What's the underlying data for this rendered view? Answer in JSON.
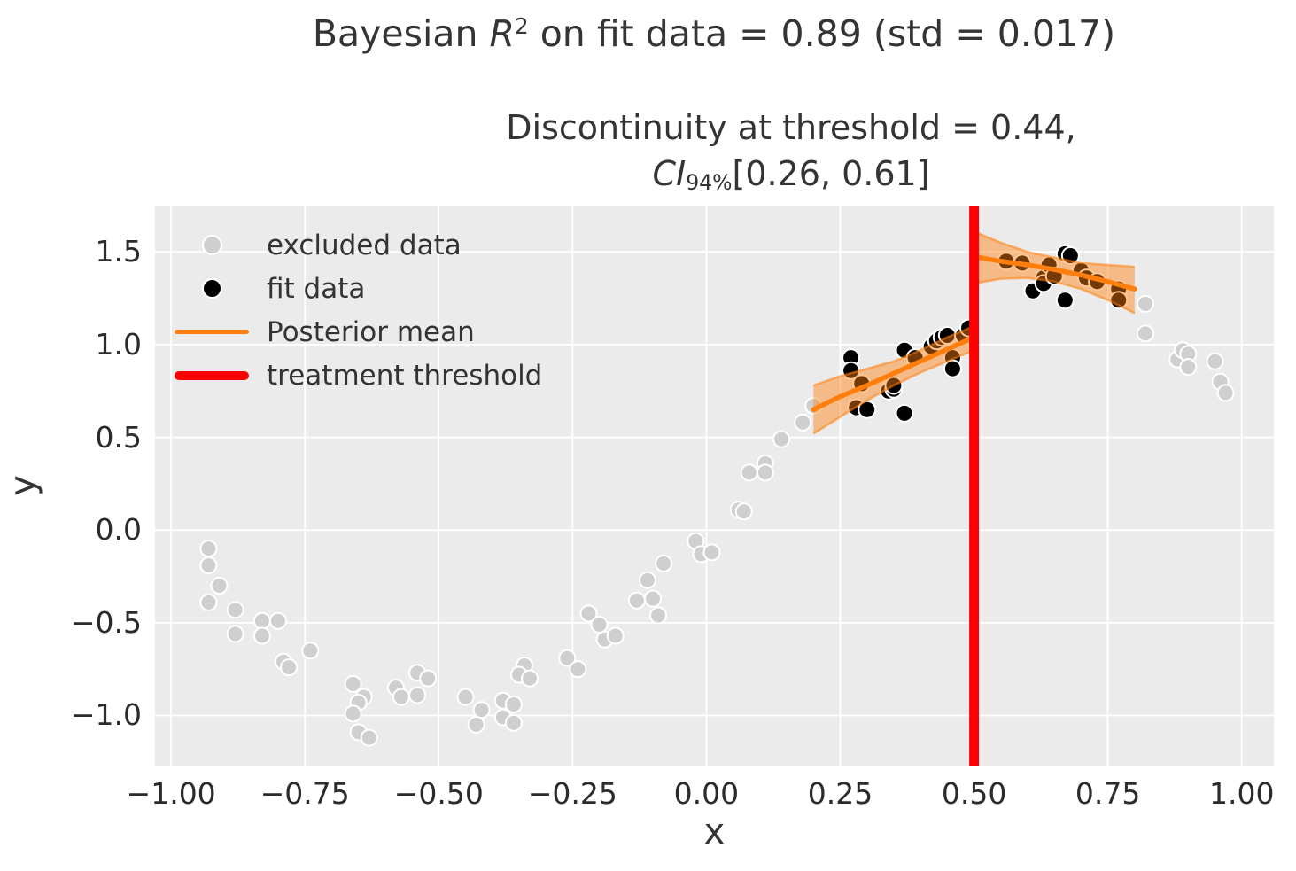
{
  "titles": {
    "suptitle_prefix": "Bayesian ",
    "suptitle_var": "R",
    "suptitle_exponent": "2",
    "suptitle_suffix": " on fit data = 0.89 (std = 0.017)",
    "title_line1": "Discontinuity at threshold = 0.44,",
    "ci_label": "CI",
    "ci_level": "94%",
    "ci_interval": "[0.26, 0.61]",
    "xlabel": "x",
    "ylabel": "y"
  },
  "legend": {
    "items": [
      {
        "label": "excluded data",
        "marker": "dot",
        "color": "#cfcfcf"
      },
      {
        "label": "fit data",
        "marker": "dot",
        "color": "#000000"
      },
      {
        "label": "Posterior mean",
        "marker": "line",
        "color": "#ff7f0e"
      },
      {
        "label": "treatment threshold",
        "marker": "thick-line",
        "color": "#ff0000"
      }
    ]
  },
  "colors": {
    "axes_background": "#ebebeb",
    "grid": "#ffffff",
    "excluded_points": "#cfcfcf",
    "fit_points": "#000000",
    "marker_edge": "#ffffff",
    "posterior_mean": "#ff7f0e",
    "band_fill": "#ff7f0e",
    "band_fill_opacity": 0.45,
    "band_edge_opacity": 0.55,
    "threshold": "#ff0000",
    "title_text": "#343434",
    "tick_text": "#2b2b2b"
  },
  "chart_data": {
    "type": "scatter",
    "title": "Bayesian R^2 on fit data = 0.89 (std = 0.017)",
    "subtitle": "Discontinuity at threshold = 0.44, CI_94% [0.26, 0.61]",
    "xlabel": "x",
    "ylabel": "y",
    "xlim": [
      -1.03,
      1.06
    ],
    "ylim": [
      -1.27,
      1.75
    ],
    "grid": true,
    "legend_position": "upper left",
    "x_ticks": {
      "values": [
        -1.0,
        -0.75,
        -0.5,
        -0.25,
        0.0,
        0.25,
        0.5,
        0.75,
        1.0
      ],
      "labels": [
        "−1.00",
        "−0.75",
        "−0.50",
        "−0.25",
        "0.00",
        "0.25",
        "0.50",
        "0.75",
        "1.00"
      ]
    },
    "y_ticks": {
      "values": [
        -1.0,
        -0.5,
        0.0,
        0.5,
        1.0,
        1.5
      ],
      "labels": [
        "−1.0",
        "−0.5",
        "0.0",
        "0.5",
        "1.0",
        "1.5"
      ]
    },
    "stats": {
      "bayesian_r2": 0.89,
      "r2_std": 0.017,
      "discontinuity": 0.44,
      "ci_level": "94%",
      "ci": [
        0.26,
        0.61
      ],
      "treatment_threshold_x": 0.5
    },
    "threshold_x": 0.5,
    "series": [
      {
        "name": "excluded data",
        "type": "scatter",
        "points": [
          [
            -0.93,
            -0.1
          ],
          [
            -0.93,
            -0.19
          ],
          [
            -0.91,
            -0.3
          ],
          [
            -0.93,
            -0.39
          ],
          [
            -0.88,
            -0.43
          ],
          [
            -0.83,
            -0.49
          ],
          [
            -0.8,
            -0.49
          ],
          [
            -0.88,
            -0.56
          ],
          [
            -0.83,
            -0.57
          ],
          [
            -0.74,
            -0.65
          ],
          [
            -0.79,
            -0.71
          ],
          [
            -0.78,
            -0.74
          ],
          [
            -0.66,
            -0.83
          ],
          [
            -0.64,
            -0.9
          ],
          [
            -0.65,
            -0.93
          ],
          [
            -0.66,
            -0.99
          ],
          [
            -0.65,
            -1.09
          ],
          [
            -0.63,
            -1.12
          ],
          [
            -0.58,
            -0.85
          ],
          [
            -0.57,
            -0.9
          ],
          [
            -0.54,
            -0.89
          ],
          [
            -0.54,
            -0.77
          ],
          [
            -0.52,
            -0.8
          ],
          [
            -0.45,
            -0.9
          ],
          [
            -0.42,
            -0.97
          ],
          [
            -0.38,
            -0.92
          ],
          [
            -0.36,
            -0.94
          ],
          [
            -0.43,
            -1.05
          ],
          [
            -0.38,
            -1.01
          ],
          [
            -0.36,
            -1.04
          ],
          [
            -0.34,
            -0.73
          ],
          [
            -0.35,
            -0.78
          ],
          [
            -0.33,
            -0.8
          ],
          [
            -0.26,
            -0.69
          ],
          [
            -0.24,
            -0.75
          ],
          [
            -0.22,
            -0.45
          ],
          [
            -0.2,
            -0.51
          ],
          [
            -0.19,
            -0.59
          ],
          [
            -0.17,
            -0.57
          ],
          [
            -0.13,
            -0.38
          ],
          [
            -0.11,
            -0.27
          ],
          [
            -0.1,
            -0.37
          ],
          [
            -0.09,
            -0.46
          ],
          [
            -0.08,
            -0.18
          ],
          [
            -0.02,
            -0.06
          ],
          [
            -0.01,
            -0.13
          ],
          [
            0.01,
            -0.12
          ],
          [
            0.06,
            0.11
          ],
          [
            0.07,
            0.1
          ],
          [
            0.08,
            0.31
          ],
          [
            0.11,
            0.36
          ],
          [
            0.11,
            0.31
          ],
          [
            0.14,
            0.49
          ],
          [
            0.18,
            0.58
          ],
          [
            0.2,
            0.67
          ],
          [
            0.82,
            1.22
          ],
          [
            0.82,
            1.06
          ],
          [
            0.88,
            0.92
          ],
          [
            0.89,
            0.97
          ],
          [
            0.9,
            0.95
          ],
          [
            0.9,
            0.88
          ],
          [
            0.95,
            0.91
          ],
          [
            0.96,
            0.8
          ],
          [
            0.97,
            0.74
          ]
        ]
      },
      {
        "name": "fit data",
        "type": "scatter",
        "points": [
          [
            0.27,
            0.93
          ],
          [
            0.27,
            0.86
          ],
          [
            0.29,
            0.79
          ],
          [
            0.28,
            0.66
          ],
          [
            0.3,
            0.65
          ],
          [
            0.34,
            0.75
          ],
          [
            0.35,
            0.76
          ],
          [
            0.35,
            0.78
          ],
          [
            0.37,
            0.97
          ],
          [
            0.39,
            0.93
          ],
          [
            0.37,
            0.63
          ],
          [
            0.42,
            0.99
          ],
          [
            0.43,
            1.02
          ],
          [
            0.44,
            1.04
          ],
          [
            0.45,
            1.05
          ],
          [
            0.46,
            0.93
          ],
          [
            0.46,
            0.87
          ],
          [
            0.48,
            1.05
          ],
          [
            0.49,
            1.09
          ],
          [
            0.56,
            1.45
          ],
          [
            0.59,
            1.44
          ],
          [
            0.61,
            1.29
          ],
          [
            0.63,
            1.36
          ],
          [
            0.63,
            1.33
          ],
          [
            0.64,
            1.43
          ],
          [
            0.65,
            1.37
          ],
          [
            0.67,
            1.49
          ],
          [
            0.68,
            1.48
          ],
          [
            0.67,
            1.24
          ],
          [
            0.7,
            1.4
          ],
          [
            0.71,
            1.36
          ],
          [
            0.73,
            1.34
          ],
          [
            0.77,
            1.3
          ],
          [
            0.77,
            1.24
          ]
        ]
      },
      {
        "name": "Posterior mean (left of threshold)",
        "type": "line+band",
        "x": [
          0.2,
          0.25,
          0.3,
          0.35,
          0.4,
          0.45,
          0.5
        ],
        "mean": [
          0.65,
          0.72,
          0.78,
          0.845,
          0.91,
          0.975,
          1.04
        ],
        "lower": [
          0.52,
          0.61,
          0.7,
          0.78,
          0.85,
          0.91,
          0.97
        ],
        "upper": [
          0.78,
          0.83,
          0.87,
          0.91,
          0.97,
          1.04,
          1.1
        ]
      },
      {
        "name": "Posterior mean (right of threshold)",
        "type": "line+band",
        "x": [
          0.5,
          0.55,
          0.6,
          0.65,
          0.7,
          0.75,
          0.8
        ],
        "mean": [
          1.475,
          1.45,
          1.43,
          1.405,
          1.375,
          1.34,
          1.3
        ],
        "lower": [
          1.33,
          1.355,
          1.36,
          1.34,
          1.3,
          1.24,
          1.17
        ],
        "upper": [
          1.61,
          1.55,
          1.5,
          1.47,
          1.44,
          1.43,
          1.42
        ]
      }
    ]
  }
}
